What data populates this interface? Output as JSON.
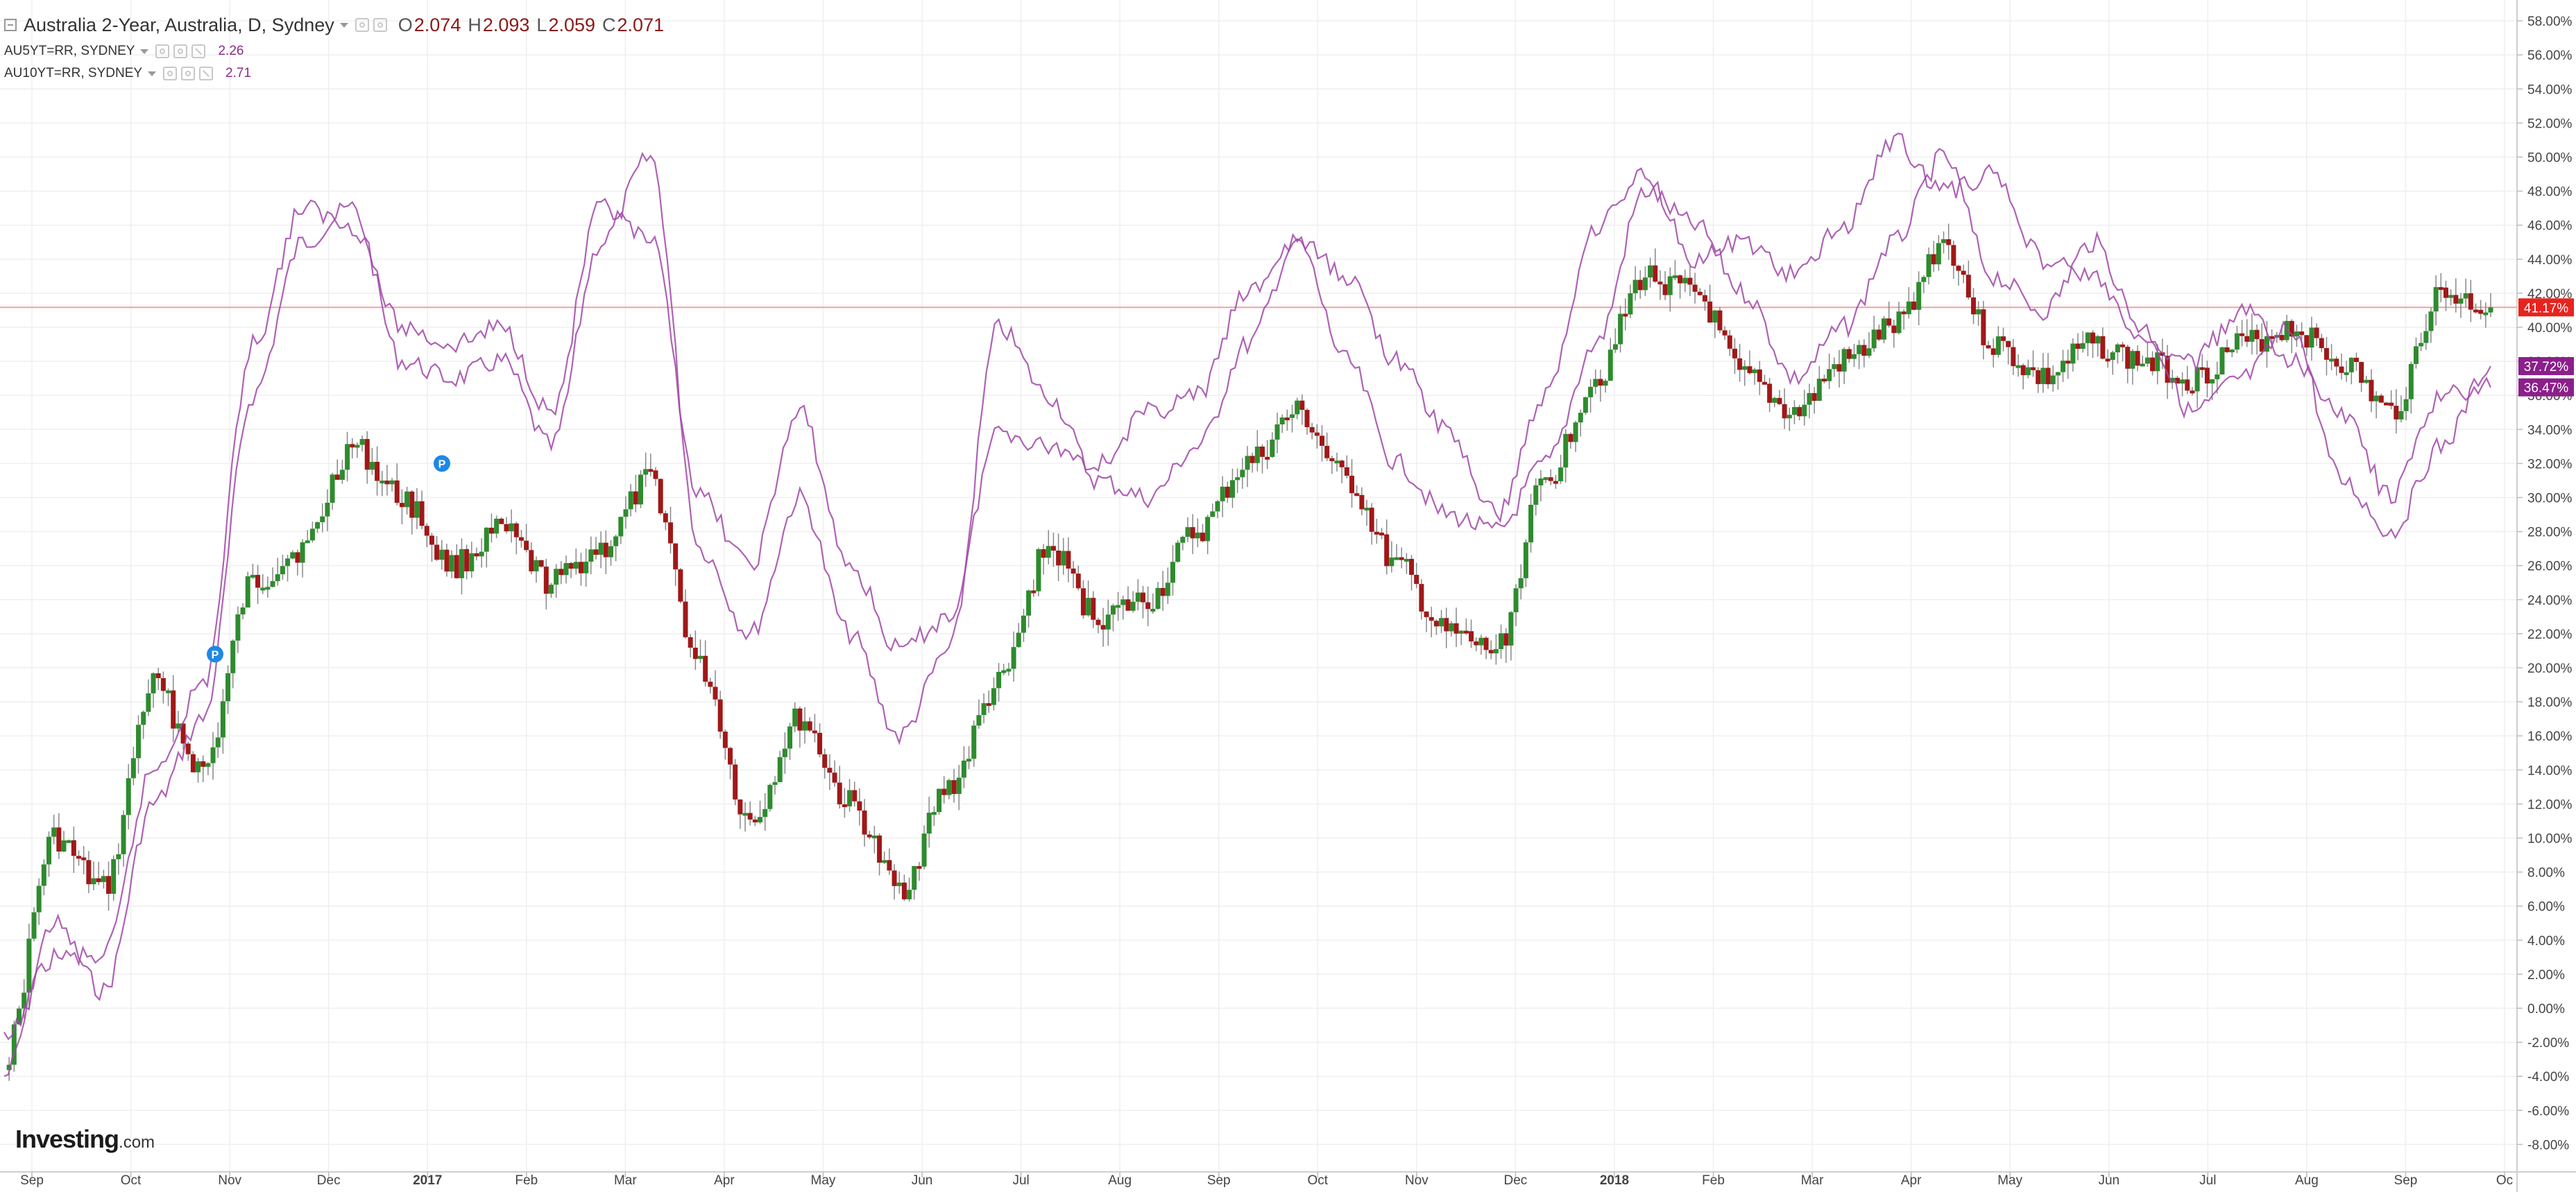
{
  "legend": {
    "main_title": "Australia 2-Year, Australia, D, Sydney",
    "o_label": "O",
    "o_value": "2.074",
    "h_label": "H",
    "h_value": "2.093",
    "l_label": "L",
    "l_value": "2.059",
    "c_label": "C",
    "c_value": "2.071",
    "series5_name": "AU5YT=RR, SYDNEY",
    "series5_value": "2.26",
    "series10_name": "AU10YT=RR, SYDNEY",
    "series10_value": "2.71"
  },
  "logo": {
    "brand": "Investing",
    "domain": ".com"
  },
  "colors": {
    "up": "#2e8b2e",
    "down": "#a01818",
    "line": "#a046a8",
    "current_price": "#e8231f",
    "purple_badge": "#8b1f8b",
    "grid": "#efefef"
  },
  "chart_data": {
    "type": "candlestick",
    "y_unit": "%",
    "ylim": [
      -9,
      58
    ],
    "y_ticks": [
      "58.00%",
      "56.00%",
      "54.00%",
      "52.00%",
      "50.00%",
      "48.00%",
      "46.00%",
      "44.00%",
      "42.00%",
      "40.00%",
      "38.00%",
      "36.00%",
      "34.00%",
      "32.00%",
      "30.00%",
      "28.00%",
      "26.00%",
      "24.00%",
      "22.00%",
      "20.00%",
      "18.00%",
      "16.00%",
      "14.00%",
      "12.00%",
      "10.00%",
      "8.00%",
      "6.00%",
      "4.00%",
      "2.00%",
      "0.00%",
      "-2.00%",
      "-4.00%",
      "-6.00%",
      "-8.00%"
    ],
    "x_ticks": [
      "Sep",
      "Oct",
      "Nov",
      "Dec",
      "2017",
      "Feb",
      "Mar",
      "Apr",
      "May",
      "Jun",
      "Jul",
      "Aug",
      "Sep",
      "Oct",
      "Nov",
      "Dec",
      "2018",
      "Feb",
      "Mar",
      "Apr",
      "May",
      "Jun",
      "Jul",
      "Aug",
      "Sep",
      "Oc"
    ],
    "current_price_line": 41.17,
    "price_badges": [
      {
        "label": "41.17%",
        "value": 41.17,
        "color": "#e8231f"
      },
      {
        "label": "37.72%",
        "value": 37.72,
        "color": "#8b1f8b"
      },
      {
        "label": "36.47%",
        "value": 36.47,
        "color": "#8b1f8b"
      }
    ],
    "markers": [
      {
        "label": "P",
        "x": "Oct 27 2016",
        "value": 20.8
      },
      {
        "label": "P",
        "x": "Dec 29 2016",
        "value": 32.0
      }
    ],
    "series": [
      {
        "name": "Australia 2-Year",
        "kind": "candles",
        "points": [
          [
            "Sep 2016",
            -3
          ],
          [
            "mid Sep 2016",
            10
          ],
          [
            "Oct 2016",
            7
          ],
          [
            "mid Oct 2016",
            19
          ],
          [
            "Nov 2016",
            14
          ],
          [
            "mid Nov 2016",
            25
          ],
          [
            "Dec 2016",
            27
          ],
          [
            "mid Dec 2016",
            33
          ],
          [
            "Jan 2017",
            30
          ],
          [
            "mid Jan 2017",
            26
          ],
          [
            "Feb 2017",
            28
          ],
          [
            "mid Feb 2017",
            25
          ],
          [
            "Mar 2017",
            27
          ],
          [
            "mid Mar 2017",
            31
          ],
          [
            "Apr 2017",
            20
          ],
          [
            "mid Apr 2017",
            11
          ],
          [
            "May 2017",
            17
          ],
          [
            "mid May 2017",
            12
          ],
          [
            "Jun 2017",
            7
          ],
          [
            "mid Jun 2017",
            13
          ],
          [
            "Jul 2017",
            19
          ],
          [
            "mid Jul 2017",
            27
          ],
          [
            "Aug 2017",
            23
          ],
          [
            "mid Aug 2017",
            24
          ],
          [
            "Sep 2017",
            28
          ],
          [
            "mid Sep 2017",
            32
          ],
          [
            "Oct 2017",
            35
          ],
          [
            "mid Oct 2017",
            31
          ],
          [
            "Nov 2017",
            26
          ],
          [
            "mid Nov 2017",
            22
          ],
          [
            "Dec 2017",
            21
          ],
          [
            "mid Dec 2017",
            31
          ],
          [
            "Jan 2018",
            37
          ],
          [
            "mid Jan 2018",
            43
          ],
          [
            "Feb 2018",
            42
          ],
          [
            "mid Feb 2018",
            37
          ],
          [
            "Mar 2018",
            35
          ],
          [
            "mid Mar 2018",
            38
          ],
          [
            "Apr 2018",
            40
          ],
          [
            "mid Apr 2018",
            45
          ],
          [
            "May 2018",
            39
          ],
          [
            "mid May 2018",
            37
          ],
          [
            "Jun 2018",
            39
          ],
          [
            "mid Jun 2018",
            38
          ],
          [
            "Jul 2018",
            37
          ],
          [
            "mid Jul 2018",
            39
          ],
          [
            "Aug 2018",
            40
          ],
          [
            "mid Aug 2018",
            38
          ],
          [
            "Sep 2018",
            35
          ],
          [
            "mid Sep 2018",
            42
          ],
          [
            "late Sep 2018",
            41.17
          ]
        ]
      },
      {
        "name": "AU5YT=RR, SYDNEY",
        "kind": "line",
        "points": [
          [
            "Sep 2016",
            -4
          ],
          [
            "mid Sep 2016",
            5
          ],
          [
            "Oct 2016",
            1
          ],
          [
            "mid Oct 2016",
            12
          ],
          [
            "Nov 2016",
            17
          ],
          [
            "mid Nov 2016",
            36
          ],
          [
            "Dec 2016",
            45
          ],
          [
            "mid Dec 2016",
            47
          ],
          [
            "Jan 2017",
            38
          ],
          [
            "mid Jan 2017",
            37
          ],
          [
            "Feb 2017",
            38
          ],
          [
            "mid Feb 2017",
            33
          ],
          [
            "Mar 2017",
            45
          ],
          [
            "mid Mar 2017",
            50
          ],
          [
            "Apr 2017",
            27
          ],
          [
            "mid Apr 2017",
            22
          ],
          [
            "May 2017",
            30
          ],
          [
            "mid May 2017",
            22
          ],
          [
            "Jun 2017",
            16
          ],
          [
            "mid Jun 2017",
            21
          ],
          [
            "Jul 2017",
            40
          ],
          [
            "mid Jul 2017",
            36
          ],
          [
            "Aug 2017",
            31
          ],
          [
            "mid Aug 2017",
            30
          ],
          [
            "Sep 2017",
            33
          ],
          [
            "mid Sep 2017",
            39
          ],
          [
            "Oct 2017",
            45
          ],
          [
            "mid Oct 2017",
            38
          ],
          [
            "Nov 2017",
            32
          ],
          [
            "mid Nov 2017",
            29
          ],
          [
            "Dec 2017",
            28
          ],
          [
            "mid Dec 2017",
            32
          ],
          [
            "Jan 2018",
            39
          ],
          [
            "mid Jan 2018",
            48
          ],
          [
            "Feb 2018",
            46
          ],
          [
            "mid Feb 2018",
            42
          ],
          [
            "Mar 2018",
            37
          ],
          [
            "mid Mar 2018",
            40
          ],
          [
            "Apr 2018",
            45
          ],
          [
            "mid Apr 2018",
            50
          ],
          [
            "May 2018",
            43
          ],
          [
            "mid May 2018",
            41
          ],
          [
            "Jun 2018",
            45
          ],
          [
            "mid Jun 2018",
            40
          ],
          [
            "Jul 2018",
            35
          ],
          [
            "mid Jul 2018",
            37
          ],
          [
            "Aug 2018",
            40
          ],
          [
            "mid Aug 2018",
            31
          ],
          [
            "Sep 2018",
            28
          ],
          [
            "mid Sep 2018",
            33
          ],
          [
            "late Sep 2018",
            37.72
          ]
        ]
      },
      {
        "name": "AU10YT=RR, SYDNEY",
        "kind": "line",
        "points": [
          [
            "Sep 2016",
            -2
          ],
          [
            "mid Sep 2016",
            3
          ],
          [
            "Oct 2016",
            3
          ],
          [
            "mid Oct 2016",
            14
          ],
          [
            "Nov 2016",
            19
          ],
          [
            "mid Nov 2016",
            39
          ],
          [
            "Dec 2016",
            47
          ],
          [
            "mid Dec 2016",
            46
          ],
          [
            "Jan 2017",
            40
          ],
          [
            "mid Jan 2017",
            39
          ],
          [
            "Feb 2017",
            40
          ],
          [
            "mid Feb 2017",
            35
          ],
          [
            "Mar 2017",
            47
          ],
          [
            "mid Mar 2017",
            45
          ],
          [
            "Apr 2017",
            30
          ],
          [
            "mid Apr 2017",
            26
          ],
          [
            "May 2017",
            35
          ],
          [
            "mid May 2017",
            26
          ],
          [
            "Jun 2017",
            21
          ],
          [
            "mid Jun 2017",
            23
          ],
          [
            "Jul 2017",
            34
          ],
          [
            "mid Jul 2017",
            33
          ],
          [
            "Aug 2017",
            32
          ],
          [
            "mid Aug 2017",
            35
          ],
          [
            "Sep 2017",
            36
          ],
          [
            "mid Sep 2017",
            42
          ],
          [
            "Oct 2017",
            45
          ],
          [
            "mid Oct 2017",
            43
          ],
          [
            "Nov 2017",
            38
          ],
          [
            "mid Nov 2017",
            34
          ],
          [
            "Dec 2017",
            29
          ],
          [
            "mid Dec 2017",
            36
          ],
          [
            "Jan 2018",
            46
          ],
          [
            "mid Jan 2018",
            49
          ],
          [
            "Feb 2018",
            44
          ],
          [
            "mid Feb 2018",
            45
          ],
          [
            "Mar 2018",
            43
          ],
          [
            "mid Mar 2018",
            46
          ],
          [
            "Apr 2018",
            51
          ],
          [
            "mid Apr 2018",
            48
          ],
          [
            "May 2018",
            49
          ],
          [
            "mid May 2018",
            44
          ],
          [
            "Jun 2018",
            43
          ],
          [
            "mid Jun 2018",
            39
          ],
          [
            "Jul 2018",
            38
          ],
          [
            "mid Jul 2018",
            41
          ],
          [
            "Aug 2018",
            38
          ],
          [
            "mid Aug 2018",
            35
          ],
          [
            "Sep 2018",
            30
          ],
          [
            "mid Sep 2018",
            36
          ],
          [
            "late Sep 2018",
            36.47
          ]
        ]
      }
    ]
  }
}
